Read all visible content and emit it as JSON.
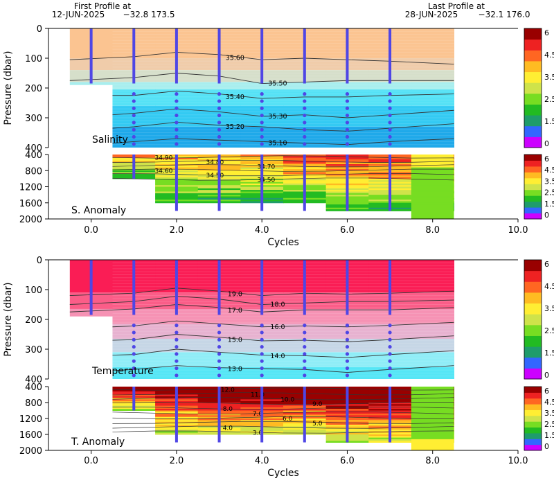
{
  "header": {
    "first_title": "First Profile at",
    "first_date": "12-JUN-2025",
    "first_coords": "−32.8  173.5",
    "last_title": "Last Profile at",
    "last_date": "28-JUN-2025",
    "last_coords": "−32.1  176.0"
  },
  "colors": {
    "profile": "#4f46e5",
    "contour": "#333333",
    "scale": [
      "#cc00ff",
      "#3366ff",
      "#1f9c6c",
      "#22bb22",
      "#77dd22",
      "#cfe34a",
      "#ffee33",
      "#ffbb22",
      "#ff6622",
      "#ee2222",
      "#990000"
    ]
  },
  "chart_data": [
    {
      "type": "heatmap",
      "panel": "salinity",
      "label": "Salinity",
      "ylabel": "Pressure (dbar)",
      "xlabel": "",
      "xlim": [
        -1,
        10
      ],
      "ylim": [
        400,
        0
      ],
      "yticks": [
        0,
        100,
        200,
        300,
        400
      ],
      "xticks": [
        0,
        2,
        4,
        6,
        8,
        10
      ],
      "profiles_x": [
        0,
        1,
        2,
        3,
        4,
        5,
        6,
        7
      ],
      "contours": [
        {
          "label": "35.60",
          "x": [
            -0.5,
            1,
            2,
            3,
            4,
            5,
            6,
            7,
            8.5
          ],
          "y": [
            105,
            95,
            80,
            88,
            105,
            100,
            105,
            110,
            120
          ]
        },
        {
          "label": "35.50",
          "x": [
            -0.5,
            1,
            2,
            3,
            4,
            5,
            6,
            7,
            8.5
          ],
          "y": [
            175,
            165,
            150,
            160,
            185,
            180,
            175,
            175,
            175
          ]
        },
        {
          "label": "35.40",
          "x": [
            0.5,
            1,
            2,
            3,
            4,
            5,
            6,
            7,
            8.5
          ],
          "y": [
            225,
            225,
            210,
            220,
            235,
            230,
            230,
            225,
            220
          ]
        },
        {
          "label": "35.30",
          "x": [
            0.5,
            1,
            2,
            3,
            4,
            5,
            6,
            7,
            8.5
          ],
          "y": [
            290,
            285,
            270,
            280,
            295,
            290,
            300,
            290,
            275
          ]
        },
        {
          "label": "35.20",
          "x": [
            0.5,
            1,
            2,
            3,
            4,
            5,
            6,
            7,
            8.5
          ],
          "y": [
            335,
            330,
            315,
            325,
            330,
            340,
            345,
            335,
            320
          ]
        },
        {
          "label": "35.10",
          "x": [
            0.5,
            1,
            2,
            3,
            4,
            5,
            6,
            7,
            8.5
          ],
          "y": [
            385,
            380,
            370,
            375,
            380,
            385,
            390,
            380,
            370
          ]
        }
      ],
      "layer_colors": [
        {
          "from": 0,
          "to": 100,
          "color": "#fbc491"
        },
        {
          "from": 100,
          "to": 140,
          "color": "#f0ccaa"
        },
        {
          "from": 140,
          "to": 180,
          "color": "#d6dfca"
        },
        {
          "from": 180,
          "to": 205,
          "color": "#a8eeee"
        },
        {
          "from": 205,
          "to": 260,
          "color": "#55e2f6"
        },
        {
          "from": 260,
          "to": 330,
          "color": "#33caf3"
        },
        {
          "from": 330,
          "to": 400,
          "color": "#1fa9ea"
        }
      ]
    },
    {
      "type": "heatmap",
      "panel": "salinity-anomaly",
      "label": "S. Anomaly",
      "ylabel": "",
      "xlabel": "",
      "xlim": [
        -1,
        10
      ],
      "ylim": [
        2000,
        400
      ],
      "yticks": [
        400,
        800,
        1200,
        1600,
        2000
      ],
      "xticks": [
        0,
        2,
        4,
        6,
        8,
        10
      ],
      "contour_labels": [
        "34.90",
        "34.80",
        "34.70",
        "34.60",
        "34.50",
        "34.50"
      ]
    },
    {
      "type": "heatmap",
      "panel": "temperature",
      "label": "Temperature",
      "ylabel": "Pressure (dbar)",
      "xlabel": "",
      "xlim": [
        -1,
        10
      ],
      "ylim": [
        400,
        0
      ],
      "yticks": [
        0,
        100,
        200,
        300,
        400
      ],
      "xticks": [
        0,
        2,
        4,
        6,
        8,
        10
      ],
      "profiles_x": [
        0,
        1,
        2,
        3,
        4,
        5,
        6,
        7
      ],
      "contours": [
        {
          "label": "19.0",
          "x": [
            -0.5,
            1,
            2,
            3,
            4,
            5,
            6,
            7,
            8.5
          ],
          "y": [
            120,
            112,
            95,
            105,
            120,
            112,
            115,
            112,
            105
          ]
        },
        {
          "label": "18.0",
          "x": [
            -0.5,
            1,
            2,
            3,
            4,
            5,
            6,
            7,
            8.5
          ],
          "y": [
            150,
            140,
            122,
            132,
            150,
            145,
            140,
            140,
            135
          ]
        },
        {
          "label": "17.0",
          "x": [
            -0.5,
            1,
            2,
            3,
            4,
            5,
            6,
            7,
            8.5
          ],
          "y": [
            175,
            165,
            150,
            160,
            175,
            168,
            168,
            168,
            160
          ]
        },
        {
          "label": "16.0",
          "x": [
            0.5,
            1,
            2,
            3,
            4,
            5,
            6,
            7,
            8.5
          ],
          "y": [
            225,
            222,
            205,
            215,
            225,
            222,
            225,
            220,
            210
          ]
        },
        {
          "label": "15.0",
          "x": [
            0.5,
            1,
            2,
            3,
            4,
            5,
            6,
            7,
            8.5
          ],
          "y": [
            270,
            268,
            250,
            260,
            272,
            270,
            275,
            268,
            255
          ]
        },
        {
          "label": "14.0",
          "x": [
            0.5,
            1,
            2,
            3,
            4,
            5,
            6,
            7,
            8.5
          ],
          "y": [
            320,
            318,
            300,
            310,
            320,
            322,
            328,
            318,
            305
          ]
        },
        {
          "label": "13.0",
          "x": [
            0.5,
            1,
            2,
            3,
            4,
            5,
            6,
            7,
            8.5
          ],
          "y": [
            372,
            368,
            355,
            362,
            365,
            368,
            378,
            368,
            355
          ]
        }
      ],
      "layer_colors": [
        {
          "from": 0,
          "to": 110,
          "color": "#fa1d55"
        },
        {
          "from": 110,
          "to": 165,
          "color": "#fb5d88"
        },
        {
          "from": 165,
          "to": 215,
          "color": "#f692b4"
        },
        {
          "from": 215,
          "to": 265,
          "color": "#e7b2d0"
        },
        {
          "from": 265,
          "to": 310,
          "color": "#c6d6e6"
        },
        {
          "from": 310,
          "to": 360,
          "color": "#8fedf7"
        },
        {
          "from": 360,
          "to": 400,
          "color": "#55e6f6"
        }
      ]
    },
    {
      "type": "heatmap",
      "panel": "temperature-anomaly",
      "label": "T. Anomaly",
      "ylabel": "",
      "xlabel": "Cycles",
      "xlim": [
        -1,
        10
      ],
      "ylim": [
        2000,
        400
      ],
      "yticks": [
        400,
        800,
        1200,
        1600,
        2000
      ],
      "xticks": [
        0,
        2,
        4,
        6,
        8,
        10
      ],
      "contour_labels": [
        "12.0",
        "11.0",
        "10.0",
        "9.0",
        "8.0",
        "7.0",
        "6.0",
        "5.0",
        "4.0",
        "3.0"
      ]
    }
  ],
  "colorbar": {
    "ticks": [
      "6",
      "4.5",
      "3.5",
      "2.5",
      "1.5",
      "0"
    ]
  },
  "xticklabels": [
    "0.0",
    "2.0",
    "4.0",
    "6.0",
    "8.0",
    "10.0"
  ],
  "cycles_label": "Cycles"
}
